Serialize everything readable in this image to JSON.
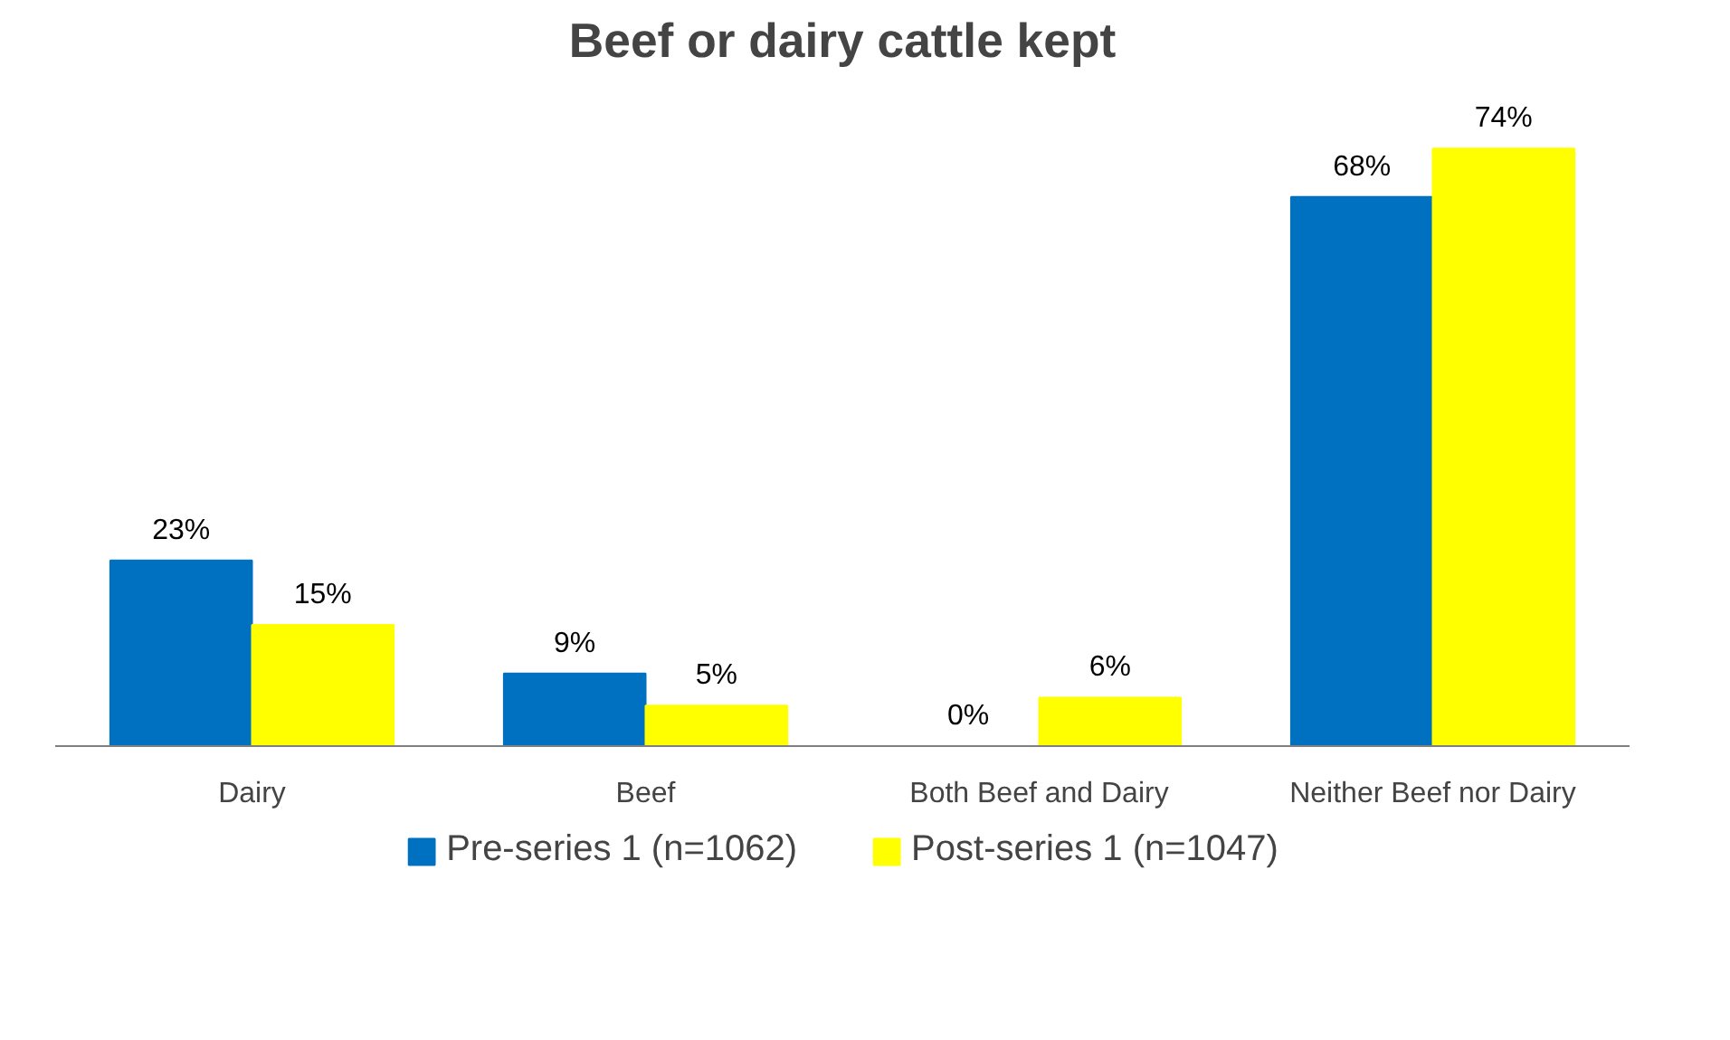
{
  "chart_data": {
    "type": "bar",
    "title": "Beef or dairy cattle kept",
    "categories": [
      "Dairy",
      "Beef",
      "Both Beef and Dairy",
      "Neither Beef nor Dairy"
    ],
    "series": [
      {
        "name": "Pre-series 1 (n=1062)",
        "color": "#0070c0",
        "values": [
          23,
          9,
          0,
          68
        ],
        "value_labels": [
          "23%",
          "9%",
          "0%",
          "68%"
        ]
      },
      {
        "name": "Post-series 1 (n=1047)",
        "color": "#ffff00",
        "values": [
          15,
          5,
          6,
          74
        ],
        "value_labels": [
          "15%",
          "5%",
          "6%",
          "74%"
        ]
      }
    ],
    "legend": "bottom"
  }
}
